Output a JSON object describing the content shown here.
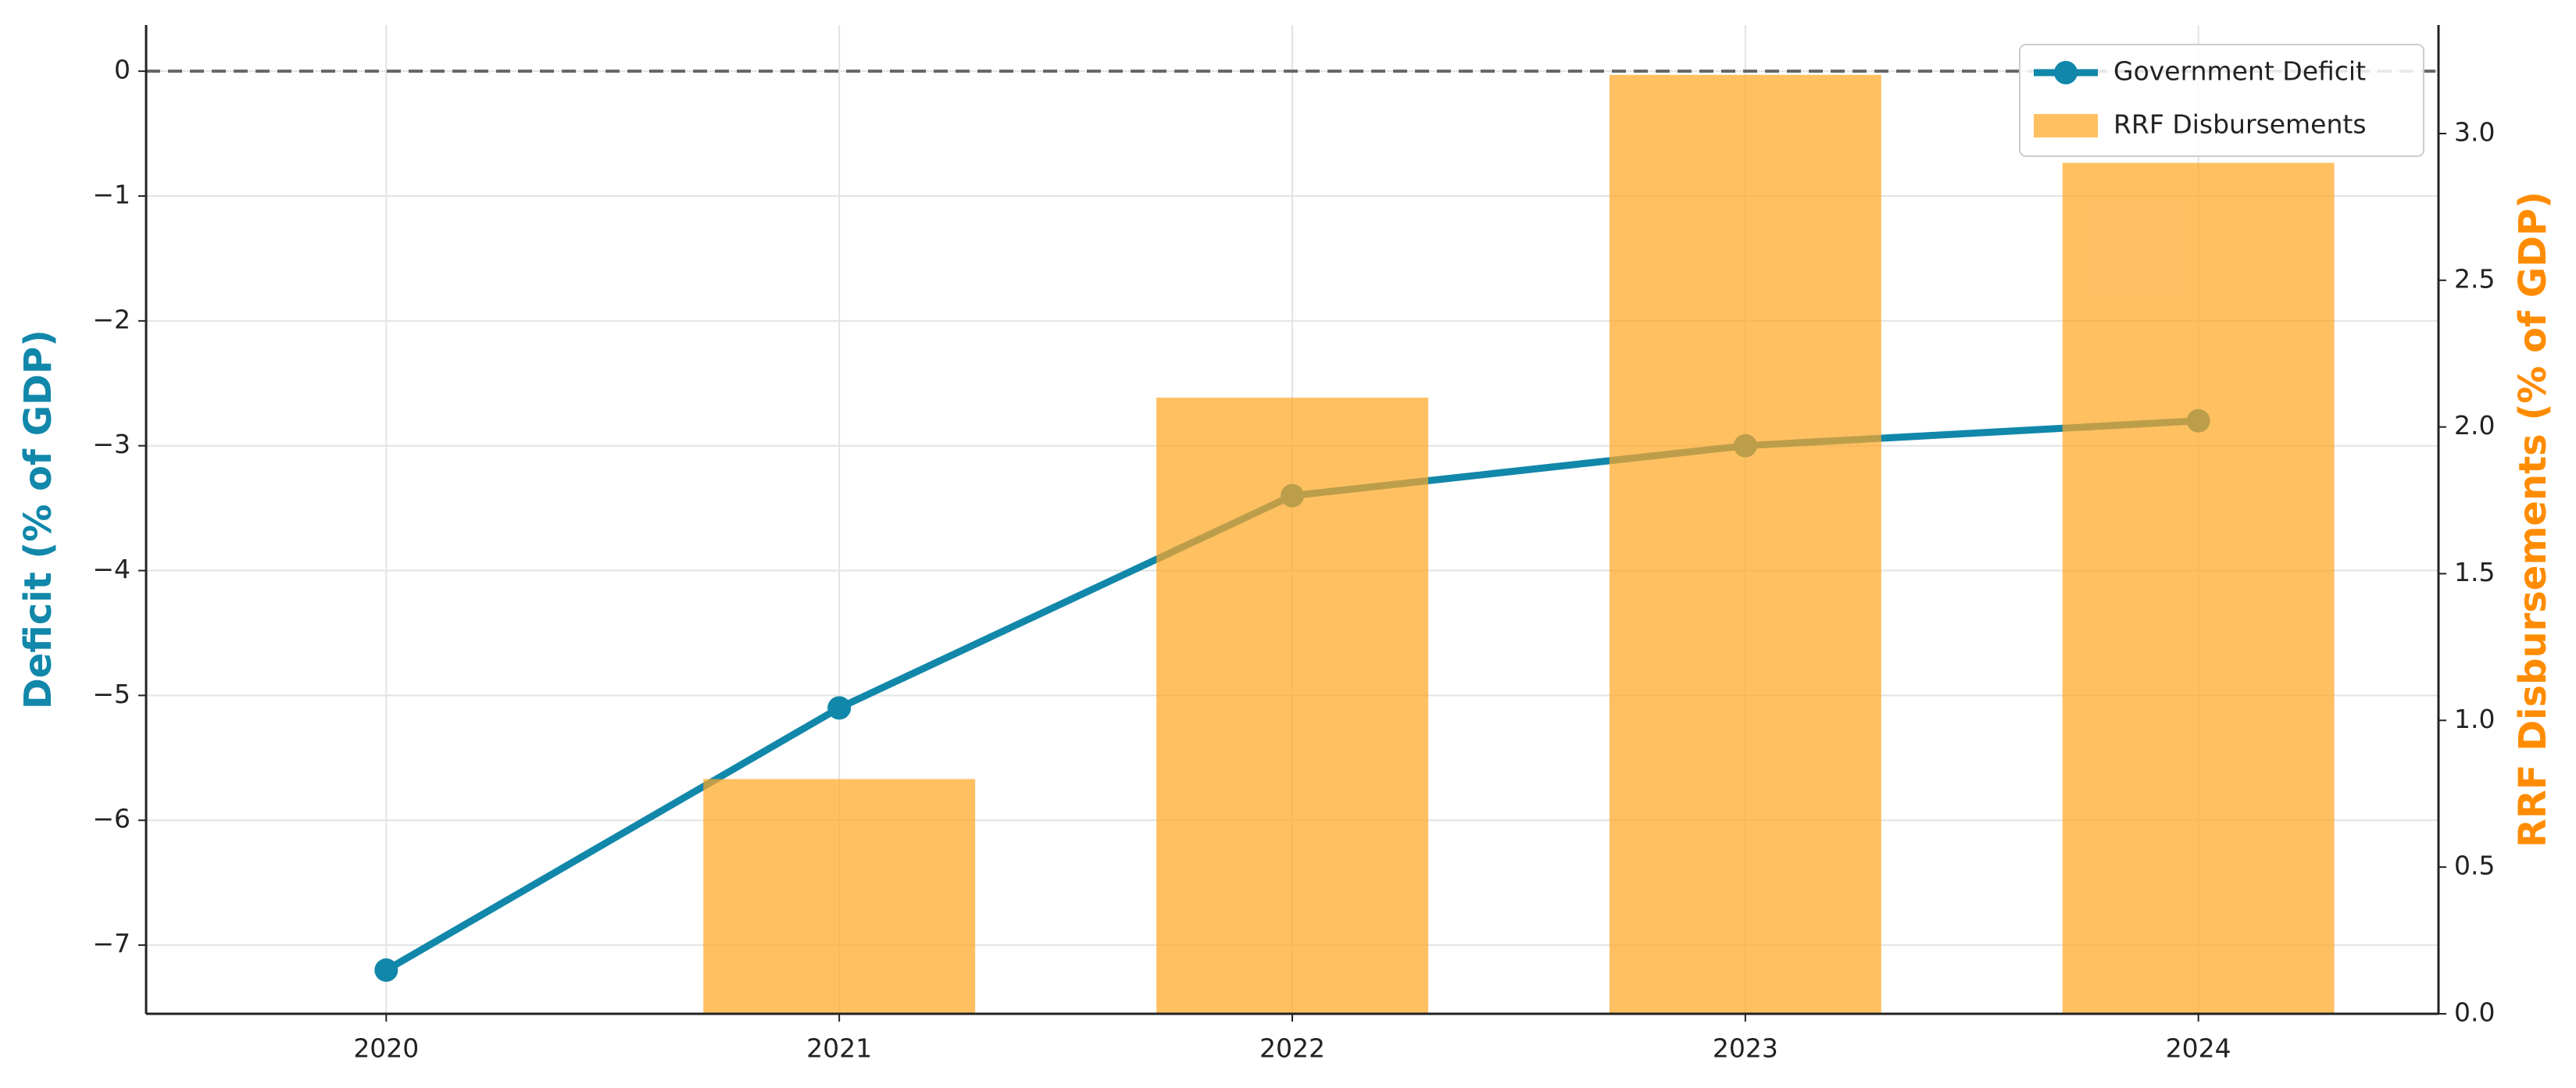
{
  "chart_data": {
    "type": "combo",
    "x": [
      2020,
      2021,
      2022,
      2023,
      2024
    ],
    "xlim": [
      2019.47,
      2024.53
    ],
    "xticks": [
      2020,
      2021,
      2022,
      2023,
      2024
    ],
    "ylabel": "Deficit (% of GDP)",
    "y2label": "RRF Disbursements (% of GDP)",
    "ylim": [
      -7.55,
      0.37
    ],
    "yticks": [
      {
        "value": -7,
        "label": "−7"
      },
      {
        "value": -6,
        "label": "−6"
      },
      {
        "value": -5,
        "label": "−5"
      },
      {
        "value": -4,
        "label": "−4"
      },
      {
        "value": -3,
        "label": "−3"
      },
      {
        "value": -2,
        "label": "−2"
      },
      {
        "value": -1,
        "label": "−1"
      },
      0
    ],
    "y2lim": [
      0,
      3.37
    ],
    "y2ticks": [
      {
        "value": 0,
        "label": "0.0"
      },
      {
        "value": 0.5,
        "label": "0.5"
      },
      {
        "value": 1,
        "label": "1.0"
      },
      {
        "value": 1.5,
        "label": "1.5"
      },
      {
        "value": 2,
        "label": "2.0"
      },
      {
        "value": 2.5,
        "label": "2.5"
      },
      {
        "value": 3,
        "label": "3.0"
      }
    ],
    "hline": 0,
    "grid": true,
    "legend": "upper right",
    "bar_width": 0.6,
    "series": [
      {
        "name": "Government Deficit",
        "type": "line",
        "color": "#1187aa",
        "values": [
          -7.2,
          -5.1,
          -3.4,
          -3.0,
          -2.8
        ]
      },
      {
        "name": "RRF Disbursements",
        "type": "bar",
        "axis": "y2",
        "color": "#ffa726",
        "values": [
          0,
          0.8,
          2.1,
          3.2,
          2.9
        ]
      }
    ]
  }
}
